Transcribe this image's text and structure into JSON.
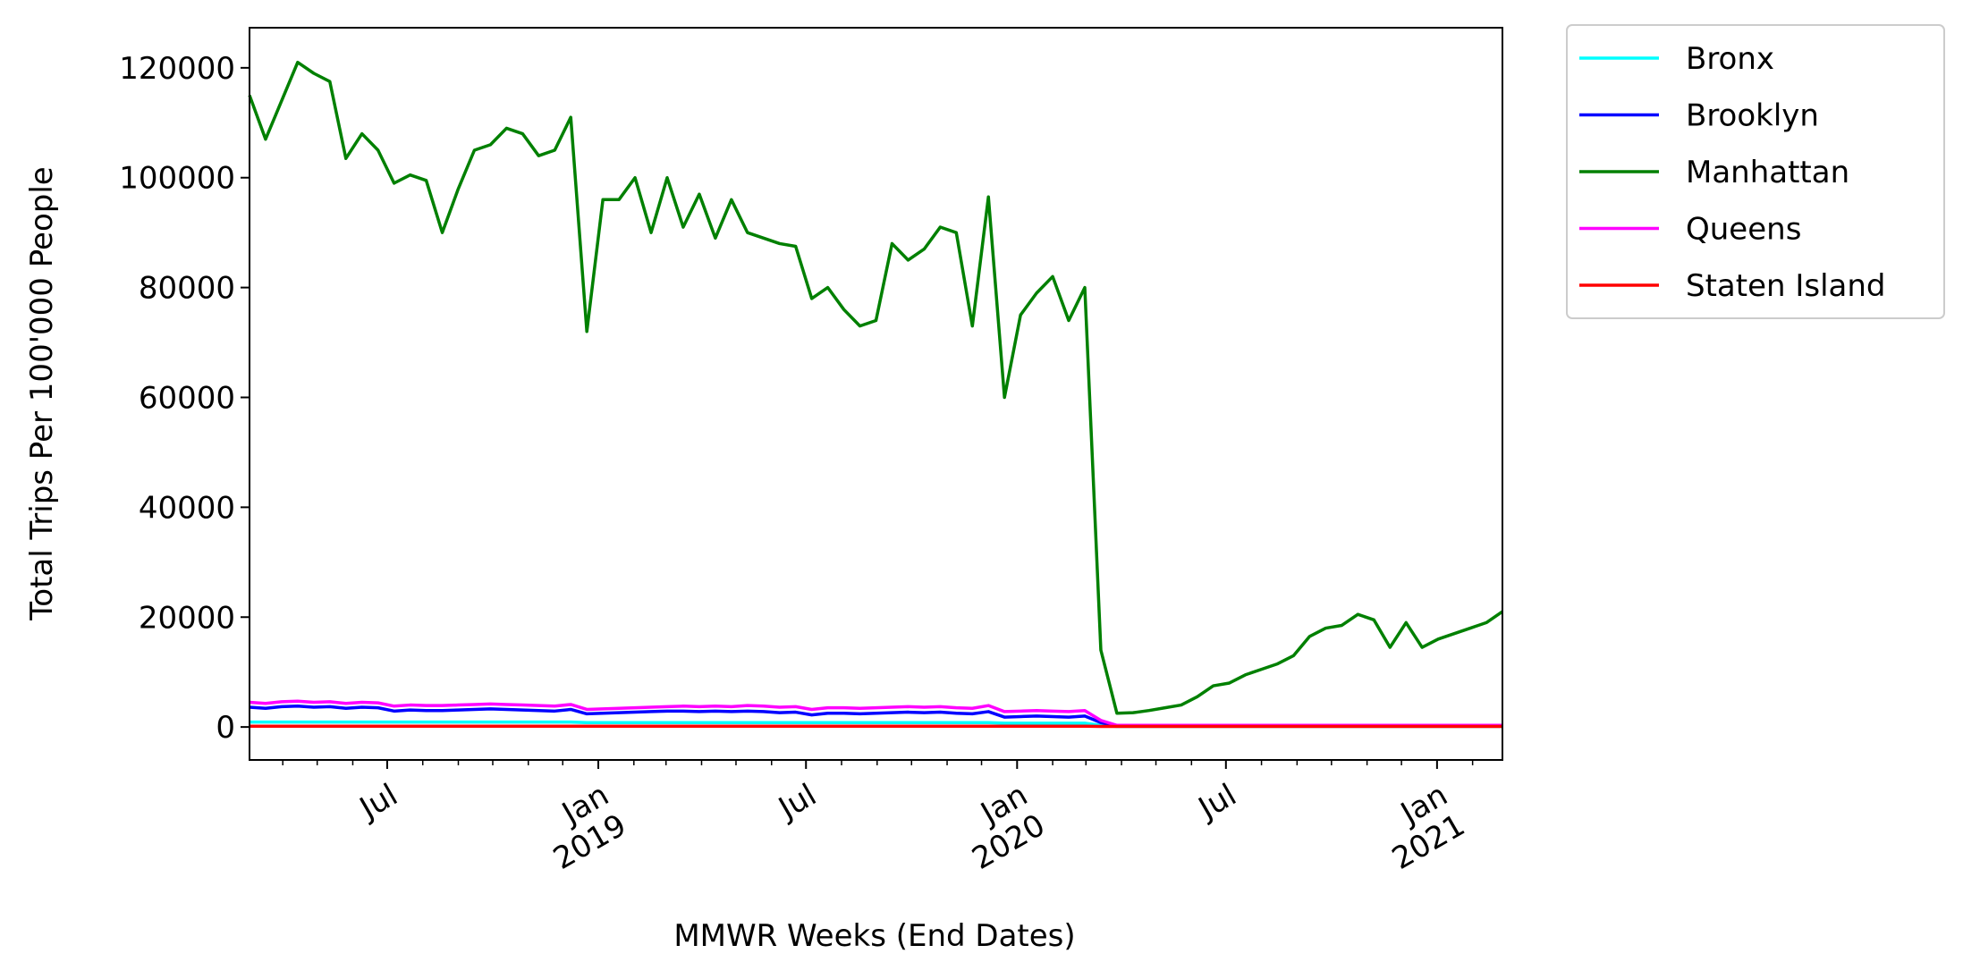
{
  "chart_data": {
    "type": "line",
    "x_label": "MMWR Weeks (End Dates)",
    "y_label": "Total Trips Per 100'000 People",
    "x": [
      "2018-03-03",
      "2018-03-17",
      "2018-03-31",
      "2018-04-14",
      "2018-04-28",
      "2018-05-12",
      "2018-05-26",
      "2018-06-09",
      "2018-06-23",
      "2018-07-07",
      "2018-07-21",
      "2018-08-04",
      "2018-08-18",
      "2018-09-01",
      "2018-09-15",
      "2018-09-29",
      "2018-10-13",
      "2018-10-27",
      "2018-11-10",
      "2018-11-24",
      "2018-12-08",
      "2018-12-22",
      "2019-01-05",
      "2019-01-19",
      "2019-02-02",
      "2019-02-16",
      "2019-03-02",
      "2019-03-16",
      "2019-03-30",
      "2019-04-13",
      "2019-04-27",
      "2019-05-11",
      "2019-05-25",
      "2019-06-08",
      "2019-06-22",
      "2019-07-06",
      "2019-07-20",
      "2019-08-03",
      "2019-08-17",
      "2019-08-31",
      "2019-09-14",
      "2019-09-28",
      "2019-10-12",
      "2019-10-26",
      "2019-11-09",
      "2019-11-23",
      "2019-12-07",
      "2019-12-21",
      "2020-01-04",
      "2020-01-18",
      "2020-02-01",
      "2020-02-15",
      "2020-02-29",
      "2020-03-14",
      "2020-03-28",
      "2020-04-11",
      "2020-04-25",
      "2020-05-09",
      "2020-05-23",
      "2020-06-06",
      "2020-06-20",
      "2020-07-04",
      "2020-07-18",
      "2020-08-01",
      "2020-08-15",
      "2020-08-29",
      "2020-09-12",
      "2020-09-26",
      "2020-10-10",
      "2020-10-24",
      "2020-11-07",
      "2020-11-21",
      "2020-12-05",
      "2020-12-19",
      "2021-01-02",
      "2021-01-16",
      "2021-01-30",
      "2021-02-13",
      "2021-02-27"
    ],
    "series": [
      {
        "name": "Bronx",
        "color": "#00ffff",
        "values": [
          900,
          900,
          900,
          900,
          900,
          900,
          900,
          900,
          900,
          900,
          900,
          900,
          900,
          900,
          900,
          900,
          900,
          900,
          900,
          900,
          900,
          800,
          800,
          800,
          800,
          800,
          800,
          800,
          800,
          800,
          800,
          800,
          800,
          800,
          800,
          800,
          800,
          800,
          800,
          800,
          800,
          800,
          800,
          800,
          800,
          800,
          800,
          700,
          700,
          700,
          700,
          700,
          700,
          300,
          100,
          100,
          100,
          100,
          100,
          100,
          100,
          100,
          100,
          100,
          100,
          100,
          100,
          100,
          100,
          100,
          100,
          100,
          100,
          100,
          100,
          100,
          100,
          100,
          100
        ]
      },
      {
        "name": "Brooklyn",
        "color": "#0000ff",
        "values": [
          3600,
          3400,
          3700,
          3800,
          3600,
          3700,
          3400,
          3600,
          3500,
          2900,
          3100,
          3000,
          3000,
          3100,
          3200,
          3300,
          3200,
          3100,
          3000,
          2900,
          3200,
          2400,
          2500,
          2600,
          2700,
          2800,
          2900,
          2900,
          2800,
          2900,
          2800,
          2900,
          2800,
          2600,
          2700,
          2200,
          2500,
          2500,
          2400,
          2500,
          2600,
          2700,
          2600,
          2700,
          2500,
          2400,
          2800,
          1800,
          1900,
          2000,
          1900,
          1800,
          2000,
          800,
          150,
          150,
          150,
          150,
          150,
          150,
          150,
          150,
          150,
          150,
          150,
          150,
          150,
          150,
          150,
          150,
          150,
          150,
          150,
          150,
          150,
          150,
          150,
          150,
          150
        ]
      },
      {
        "name": "Manhattan",
        "color": "#008000",
        "values": [
          115000,
          107000,
          114000,
          121000,
          119000,
          117500,
          103500,
          108000,
          105000,
          99000,
          100500,
          99500,
          90000,
          98000,
          105000,
          106000,
          109000,
          108000,
          104000,
          105000,
          111000,
          72000,
          96000,
          96000,
          100000,
          90000,
          100000,
          91000,
          97000,
          89000,
          96000,
          90000,
          89000,
          88000,
          87500,
          78000,
          80000,
          76000,
          73000,
          74000,
          88000,
          85000,
          87000,
          91000,
          90000,
          73000,
          96500,
          60000,
          75000,
          79000,
          82000,
          74000,
          80000,
          14000,
          2500,
          2600,
          3000,
          3500,
          4000,
          5500,
          7500,
          8000,
          9500,
          10500,
          11500,
          13000,
          16500,
          18000,
          18500,
          20500,
          19500,
          14500,
          19000,
          14500,
          16000,
          17000,
          18000,
          19000,
          21000
        ]
      },
      {
        "name": "Queens",
        "color": "#ff00ff",
        "values": [
          4500,
          4300,
          4600,
          4700,
          4500,
          4600,
          4300,
          4500,
          4400,
          3800,
          4000,
          3900,
          3900,
          4000,
          4100,
          4200,
          4100,
          4000,
          3900,
          3800,
          4100,
          3200,
          3300,
          3400,
          3500,
          3600,
          3700,
          3800,
          3700,
          3800,
          3700,
          3900,
          3800,
          3600,
          3700,
          3200,
          3500,
          3500,
          3400,
          3500,
          3600,
          3700,
          3600,
          3700,
          3500,
          3400,
          3900,
          2800,
          2900,
          3000,
          2900,
          2800,
          3000,
          1200,
          300,
          300,
          300,
          300,
          300,
          300,
          300,
          300,
          300,
          300,
          300,
          300,
          300,
          300,
          300,
          300,
          300,
          300,
          300,
          300,
          300,
          300,
          300,
          300,
          300
        ]
      },
      {
        "name": "Staten Island",
        "color": "#ff0000",
        "values": [
          150,
          150,
          150,
          150,
          150,
          150,
          150,
          150,
          150,
          150,
          150,
          150,
          150,
          150,
          150,
          150,
          150,
          150,
          150,
          150,
          150,
          150,
          150,
          150,
          150,
          150,
          150,
          150,
          150,
          150,
          150,
          150,
          150,
          150,
          150,
          150,
          150,
          150,
          150,
          150,
          150,
          150,
          150,
          150,
          150,
          150,
          150,
          150,
          150,
          150,
          150,
          150,
          150,
          100,
          100,
          100,
          100,
          100,
          100,
          100,
          100,
          100,
          100,
          100,
          100,
          100,
          100,
          100,
          100,
          100,
          100,
          100,
          100,
          100,
          100,
          100,
          100,
          100,
          100
        ]
      }
    ],
    "xlim": [
      "2018-03-03",
      "2021-02-27"
    ],
    "xticks": [
      {
        "value": "2018-07-01",
        "label": "Jul"
      },
      {
        "value": "2019-01-01",
        "label": "Jan\n2019"
      },
      {
        "value": "2019-07-01",
        "label": "Jul"
      },
      {
        "value": "2020-01-01",
        "label": "Jan\n2020"
      },
      {
        "value": "2020-07-01",
        "label": "Jul"
      },
      {
        "value": "2021-01-01",
        "label": "Jan\n2021"
      }
    ],
    "xminorticks": [
      "2018-04-01",
      "2018-05-01",
      "2018-06-01",
      "2018-08-01",
      "2018-09-01",
      "2018-10-01",
      "2018-11-01",
      "2018-12-01",
      "2019-02-01",
      "2019-03-01",
      "2019-04-01",
      "2019-05-01",
      "2019-06-01",
      "2019-08-01",
      "2019-09-01",
      "2019-10-01",
      "2019-11-01",
      "2019-12-01",
      "2020-02-01",
      "2020-03-01",
      "2020-04-01",
      "2020-05-01",
      "2020-06-01",
      "2020-08-01",
      "2020-09-01",
      "2020-10-01",
      "2020-11-01",
      "2020-12-01",
      "2021-02-01"
    ],
    "ylim": [
      -6000,
      127300
    ],
    "yticks": [
      0,
      20000,
      40000,
      60000,
      80000,
      100000,
      120000
    ],
    "grid": false,
    "legend": "outside-upper-right"
  }
}
